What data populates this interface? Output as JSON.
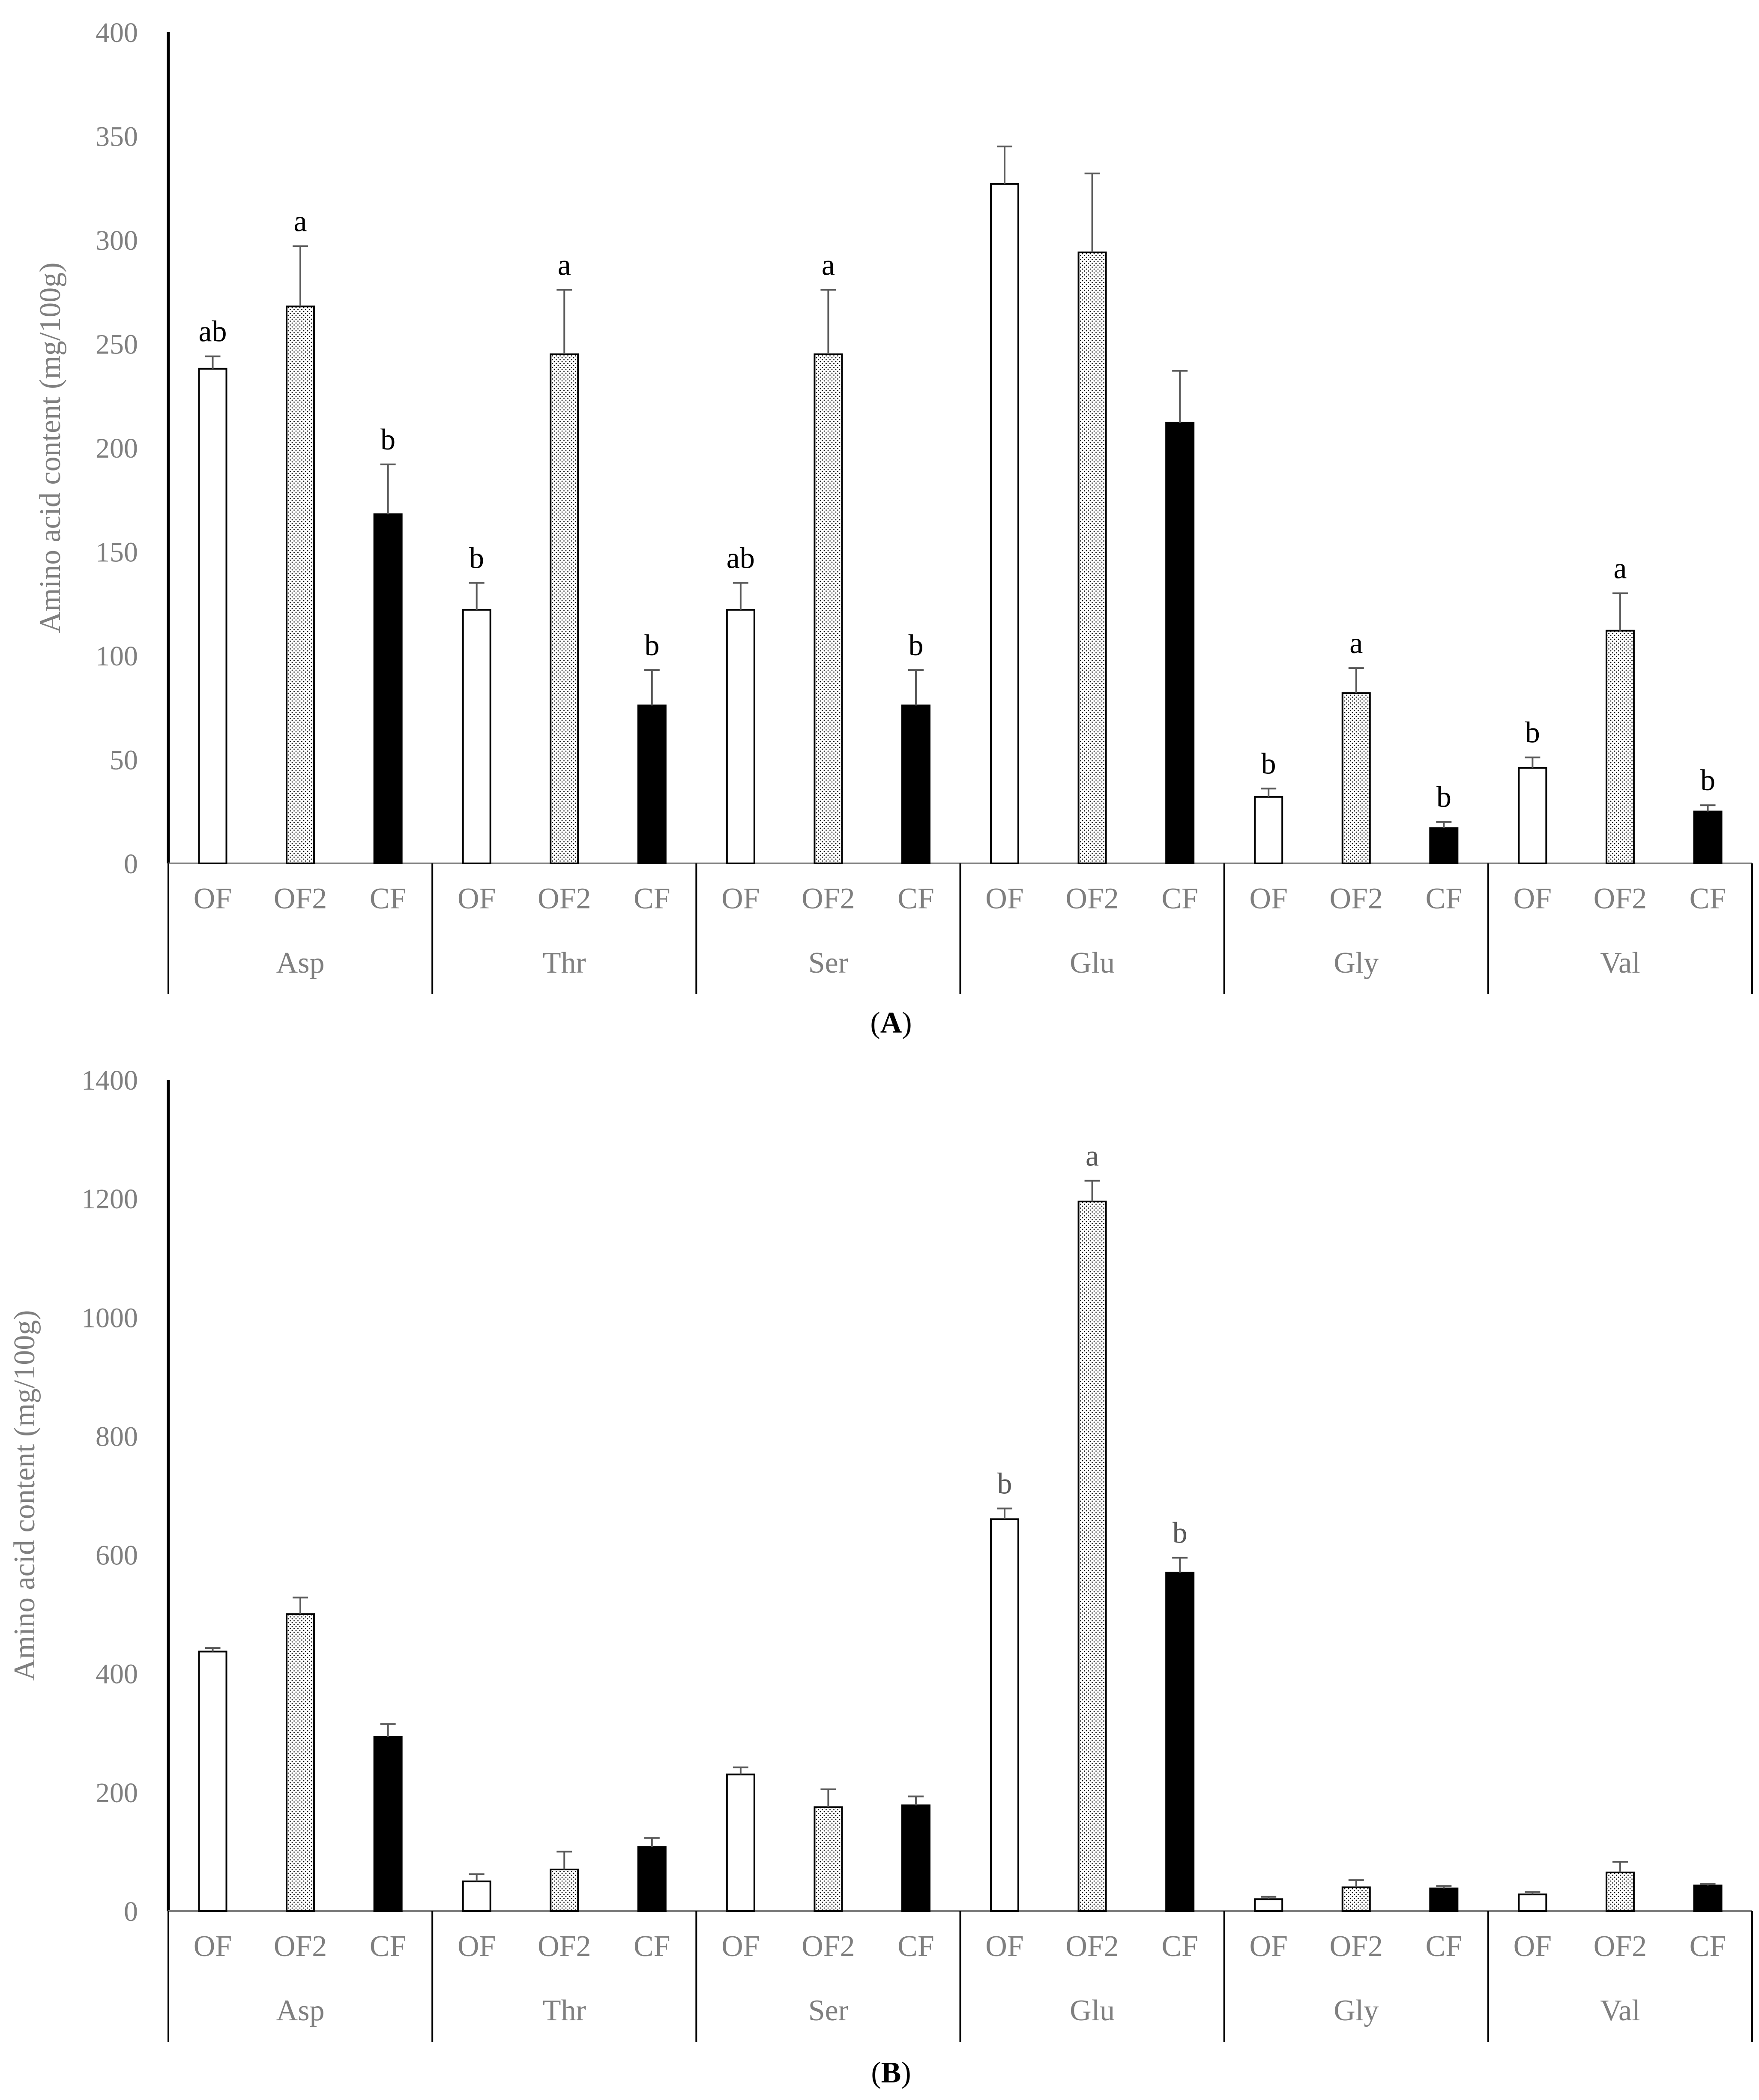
{
  "chart_data": [
    {
      "type": "bar",
      "panel_label": "A",
      "ylabel": "Amino acid content  (mg/100g)",
      "ylim": [
        0,
        400
      ],
      "yticks": [
        "0",
        "50",
        "100",
        "150",
        "200",
        "250",
        "300",
        "350",
        "400"
      ],
      "groups": [
        "Asp",
        "Thr",
        "Ser",
        "Glu",
        "Gly",
        "Val"
      ],
      "subcategories": [
        "OF",
        "OF2",
        "CF"
      ],
      "series": [
        {
          "name": "OF",
          "fill": "white",
          "values": [
            238,
            122,
            122,
            327,
            32,
            46
          ],
          "errors": [
            6,
            13,
            13,
            18,
            4,
            5
          ],
          "labels": [
            "ab",
            "b",
            "ab",
            "",
            "b",
            "b"
          ]
        },
        {
          "name": "OF2",
          "fill": "dotted",
          "values": [
            268,
            245,
            245,
            294,
            82,
            112
          ],
          "errors": [
            29,
            31,
            31,
            38,
            12,
            18
          ],
          "labels": [
            "a",
            "a",
            "a",
            "",
            "a",
            "a"
          ]
        },
        {
          "name": "CF",
          "fill": "black",
          "values": [
            168,
            76,
            76,
            212,
            17,
            25
          ],
          "errors": [
            24,
            17,
            17,
            25,
            3,
            3
          ],
          "labels": [
            "b",
            "b",
            "b",
            "",
            "b",
            "b"
          ]
        }
      ],
      "sig_color": "#000000"
    },
    {
      "type": "bar",
      "panel_label": "B",
      "ylabel": "Amino acid content  (mg/100g)",
      "ylim": [
        0,
        1400
      ],
      "yticks": [
        "0",
        "200",
        "400",
        "600",
        "800",
        "1000",
        "1200",
        "1400"
      ],
      "groups": [
        "Asp",
        "Thr",
        "Ser",
        "Glu",
        "Gly",
        "Val"
      ],
      "subcategories": [
        "OF",
        "OF2",
        "CF"
      ],
      "series": [
        {
          "name": "OF",
          "fill": "white",
          "values": [
            437,
            50,
            230,
            660,
            20,
            28
          ],
          "errors": [
            6,
            12,
            12,
            18,
            4,
            4
          ],
          "labels": [
            "",
            "",
            "",
            "b",
            "",
            ""
          ]
        },
        {
          "name": "OF2",
          "fill": "dotted",
          "values": [
            500,
            70,
            175,
            1195,
            40,
            65
          ],
          "errors": [
            28,
            30,
            30,
            35,
            12,
            18
          ],
          "labels": [
            "",
            "",
            "",
            "a",
            "",
            ""
          ]
        },
        {
          "name": "CF",
          "fill": "black",
          "values": [
            293,
            108,
            178,
            570,
            38,
            43
          ],
          "errors": [
            22,
            15,
            15,
            25,
            4,
            3
          ],
          "labels": [
            "",
            "",
            "",
            "b",
            "",
            ""
          ]
        }
      ],
      "sig_color": "#595959"
    }
  ],
  "colors": {
    "axis": "#000000",
    "tick_text": "#7f7f7f",
    "bar_outline": "#000000",
    "dot_fill": "#000000"
  }
}
